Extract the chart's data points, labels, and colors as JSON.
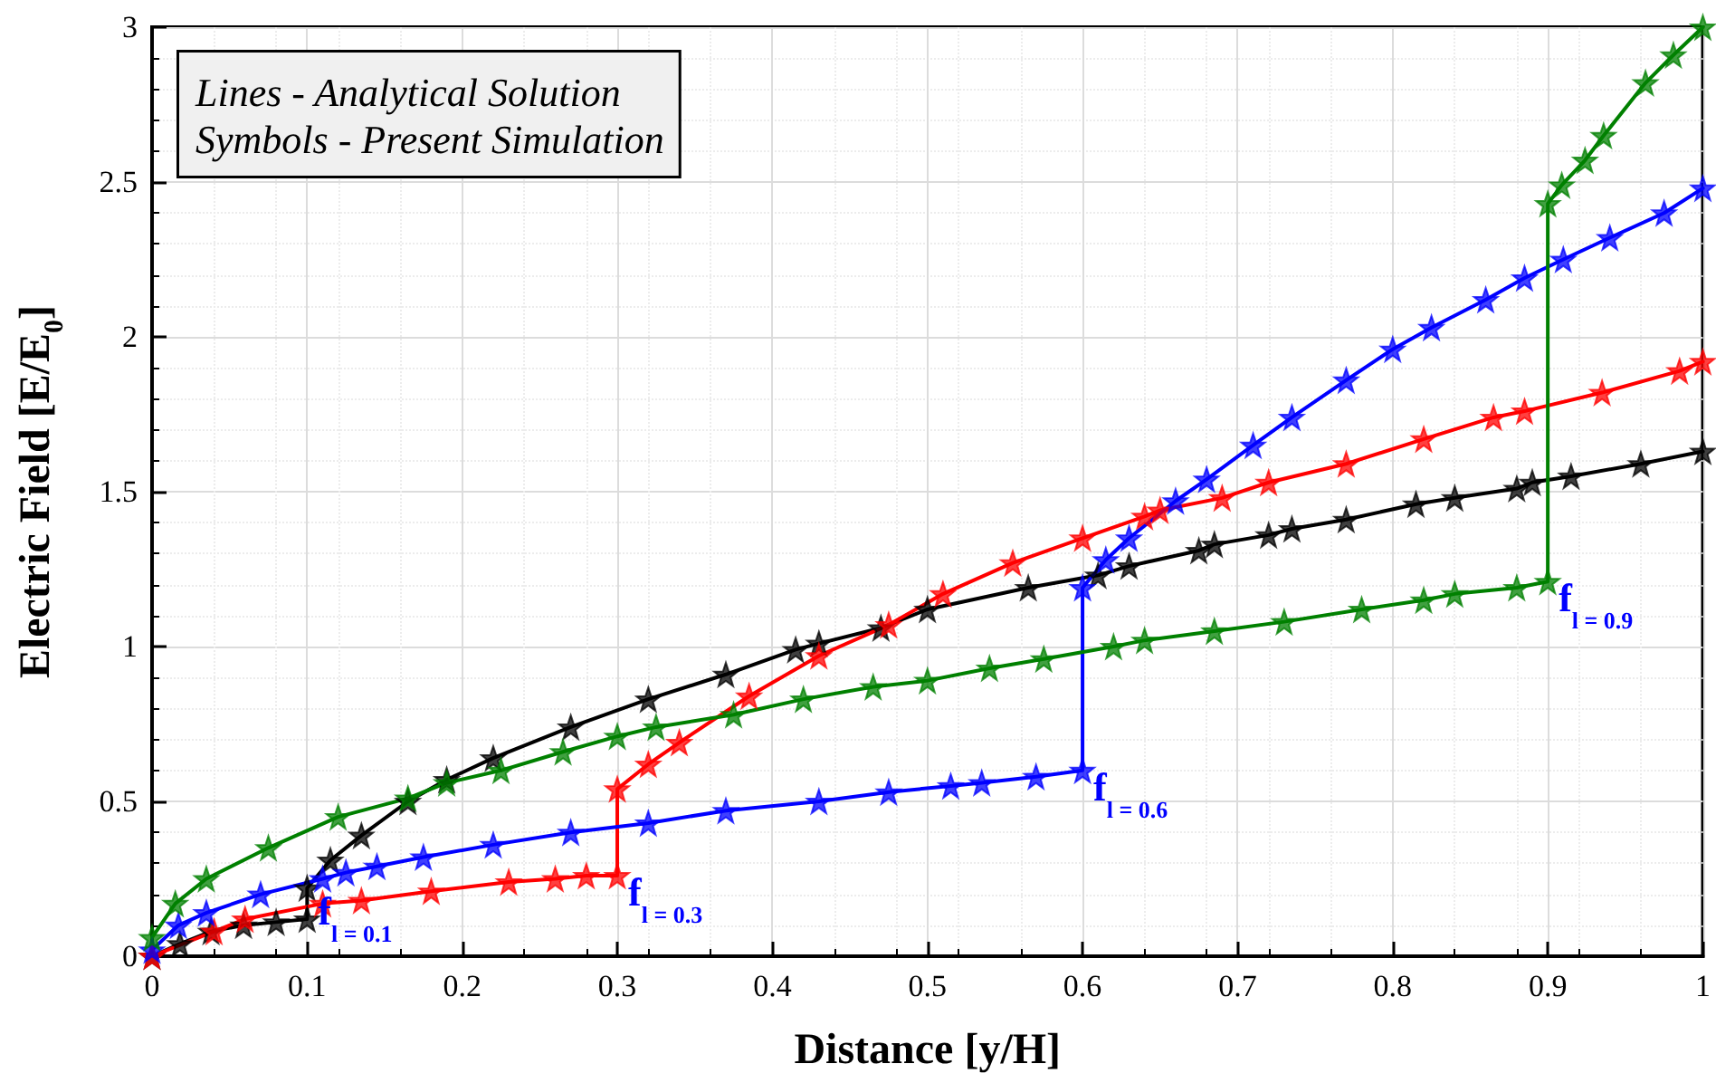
{
  "chart_data": {
    "type": "line",
    "xlabel": "Distance [y/H]",
    "ylabel": "Electric Field [E/E$_{0}$]",
    "xlim": [
      0,
      1
    ],
    "xticks": [
      0,
      0.1,
      0.2,
      0.3,
      0.4,
      0.5,
      0.6,
      0.7,
      0.8,
      0.9,
      1
    ],
    "ylim": [
      0,
      3
    ],
    "yticks": [
      0,
      0.5,
      1,
      1.5,
      2,
      2.5,
      3
    ],
    "grid": true,
    "marker": "star",
    "line_style": "solid",
    "series": [
      {
        "color": "#000000",
        "x": [
          0,
          0.018,
          0.038,
          0.059,
          0.08,
          0.1,
          0.1,
          0.115,
          0.135,
          0.165,
          0.19,
          0.22,
          0.27,
          0.32,
          0.37,
          0.415,
          0.43,
          0.47,
          0.5,
          0.565,
          0.61,
          0.63,
          0.675,
          0.685,
          0.72,
          0.735,
          0.77,
          0.815,
          0.84,
          0.88,
          0.89,
          0.915,
          0.96,
          1
        ],
        "values": [
          0,
          0.04,
          0.08,
          0.1,
          0.11,
          0.12,
          0.22,
          0.31,
          0.39,
          0.5,
          0.57,
          0.64,
          0.74,
          0.83,
          0.91,
          0.99,
          1.01,
          1.06,
          1.12,
          1.19,
          1.23,
          1.26,
          1.31,
          1.33,
          1.36,
          1.38,
          1.41,
          1.46,
          1.48,
          1.51,
          1.53,
          1.55,
          1.59,
          1.63
        ]
      },
      {
        "color": "#ff0000",
        "x": [
          0,
          0.04,
          0.06,
          0.11,
          0.135,
          0.18,
          0.23,
          0.26,
          0.28,
          0.3,
          0.3,
          0.32,
          0.34,
          0.385,
          0.43,
          0.475,
          0.51,
          0.555,
          0.6,
          0.64,
          0.65,
          0.69,
          0.72,
          0.77,
          0.82,
          0.865,
          0.885,
          0.935,
          0.985,
          1
        ],
        "values": [
          0,
          0.08,
          0.12,
          0.17,
          0.18,
          0.21,
          0.24,
          0.25,
          0.26,
          0.26,
          0.54,
          0.62,
          0.69,
          0.84,
          0.97,
          1.07,
          1.17,
          1.27,
          1.35,
          1.42,
          1.44,
          1.48,
          1.53,
          1.59,
          1.67,
          1.74,
          1.76,
          1.82,
          1.89,
          1.92
        ]
      },
      {
        "color": "#0000ff",
        "x": [
          0,
          0.017,
          0.035,
          0.07,
          0.11,
          0.125,
          0.145,
          0.175,
          0.22,
          0.27,
          0.32,
          0.37,
          0.43,
          0.475,
          0.515,
          0.535,
          0.57,
          0.6,
          0.6,
          0.615,
          0.63,
          0.66,
          0.68,
          0.71,
          0.735,
          0.77,
          0.8,
          0.825,
          0.86,
          0.885,
          0.91,
          0.94,
          0.975,
          1
        ],
        "values": [
          0.02,
          0.1,
          0.14,
          0.2,
          0.25,
          0.27,
          0.29,
          0.32,
          0.36,
          0.4,
          0.43,
          0.47,
          0.5,
          0.53,
          0.55,
          0.56,
          0.58,
          0.6,
          1.19,
          1.28,
          1.35,
          1.47,
          1.54,
          1.65,
          1.74,
          1.86,
          1.96,
          2.03,
          2.12,
          2.19,
          2.25,
          2.32,
          2.4,
          2.48
        ]
      },
      {
        "color": "#008000",
        "x": [
          0,
          0.015,
          0.035,
          0.075,
          0.12,
          0.165,
          0.19,
          0.225,
          0.265,
          0.3,
          0.325,
          0.375,
          0.42,
          0.465,
          0.5,
          0.54,
          0.575,
          0.62,
          0.64,
          0.685,
          0.73,
          0.78,
          0.82,
          0.84,
          0.88,
          0.9,
          0.9,
          0.909,
          0.924,
          0.936,
          0.963,
          0.981,
          1
        ],
        "values": [
          0.06,
          0.17,
          0.25,
          0.35,
          0.45,
          0.51,
          0.56,
          0.6,
          0.66,
          0.71,
          0.74,
          0.78,
          0.83,
          0.87,
          0.89,
          0.93,
          0.96,
          1.0,
          1.02,
          1.05,
          1.08,
          1.12,
          1.15,
          1.17,
          1.19,
          1.21,
          2.43,
          2.49,
          2.57,
          2.65,
          2.82,
          2.91,
          3.0
        ]
      }
    ],
    "annotations": [
      "Lines - Analytical Solution",
      "Symbols - Present Simulation",
      {
        "text": "f$_{l = 0.1}$",
        "x": 0.1,
        "y": 0.12
      },
      {
        "text": "f$_{l = 0.3}$",
        "x": 0.3,
        "y": 0.26
      },
      {
        "text": "f$_{l = 0.6}$",
        "x": 0.6,
        "y": 0.6
      },
      {
        "text": "f$_{l = 0.9}$",
        "x": 0.9,
        "y": 1.21
      }
    ]
  }
}
